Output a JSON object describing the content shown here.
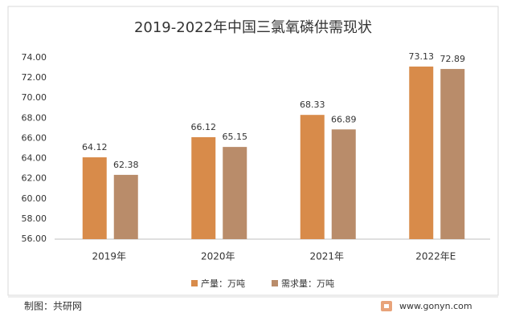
{
  "chart_data": {
    "type": "bar",
    "title": "2019-2022年中国三氯氧磷供需现状",
    "categories": [
      "2019年",
      "2020年",
      "2021年",
      "2022年E"
    ],
    "series": [
      {
        "name": "产量：万吨",
        "color": "#d88b4a",
        "values": [
          64.12,
          66.12,
          68.33,
          73.13
        ]
      },
      {
        "name": "需求量：万吨",
        "color": "#b98c6a",
        "values": [
          62.38,
          65.15,
          66.89,
          72.89
        ]
      }
    ],
    "ylim": [
      56,
      74
    ],
    "yticks": [
      {
        "value": 56,
        "label": "56.00"
      },
      {
        "value": 58,
        "label": "58.00"
      },
      {
        "value": 60,
        "label": "60.00"
      },
      {
        "value": 62,
        "label": "62.00"
      },
      {
        "value": 64,
        "label": "64.00"
      },
      {
        "value": 66,
        "label": "66.00"
      },
      {
        "value": 68,
        "label": "68.00"
      },
      {
        "value": 70,
        "label": "70.00"
      },
      {
        "value": 72,
        "label": "72.00"
      },
      {
        "value": 74,
        "label": "74.00"
      }
    ],
    "grid": false,
    "legend": "bottom"
  },
  "footer": {
    "credit": "制图：共研网",
    "website": "www.gonyn.com"
  }
}
